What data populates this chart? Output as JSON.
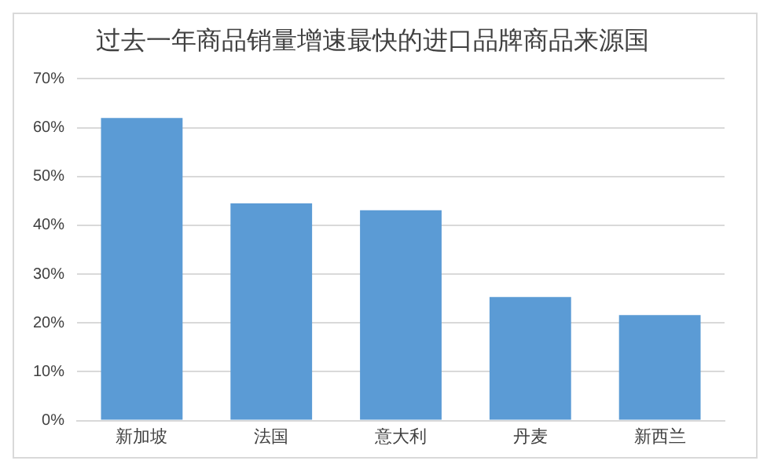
{
  "chart_data": {
    "type": "bar",
    "title": "过去一年商品销量增速最快的进口品牌商品来源国",
    "categories": [
      "新加坡",
      "法国",
      "意大利",
      "丹麦",
      "新西兰"
    ],
    "values": [
      62,
      44.5,
      43.1,
      25.3,
      21.6
    ],
    "color": "#5b9bd5",
    "ylim": [
      0,
      70
    ],
    "yticks": [
      {
        "value": 0,
        "label": "0%"
      },
      {
        "value": 10,
        "label": "10%"
      },
      {
        "value": 20,
        "label": "20%"
      },
      {
        "value": 30,
        "label": "30%"
      },
      {
        "value": 40,
        "label": "40%"
      },
      {
        "value": 50,
        "label": "50%"
      },
      {
        "value": 60,
        "label": "60%"
      },
      {
        "value": 70,
        "label": "70%"
      }
    ],
    "grid": "y",
    "legend": false
  }
}
